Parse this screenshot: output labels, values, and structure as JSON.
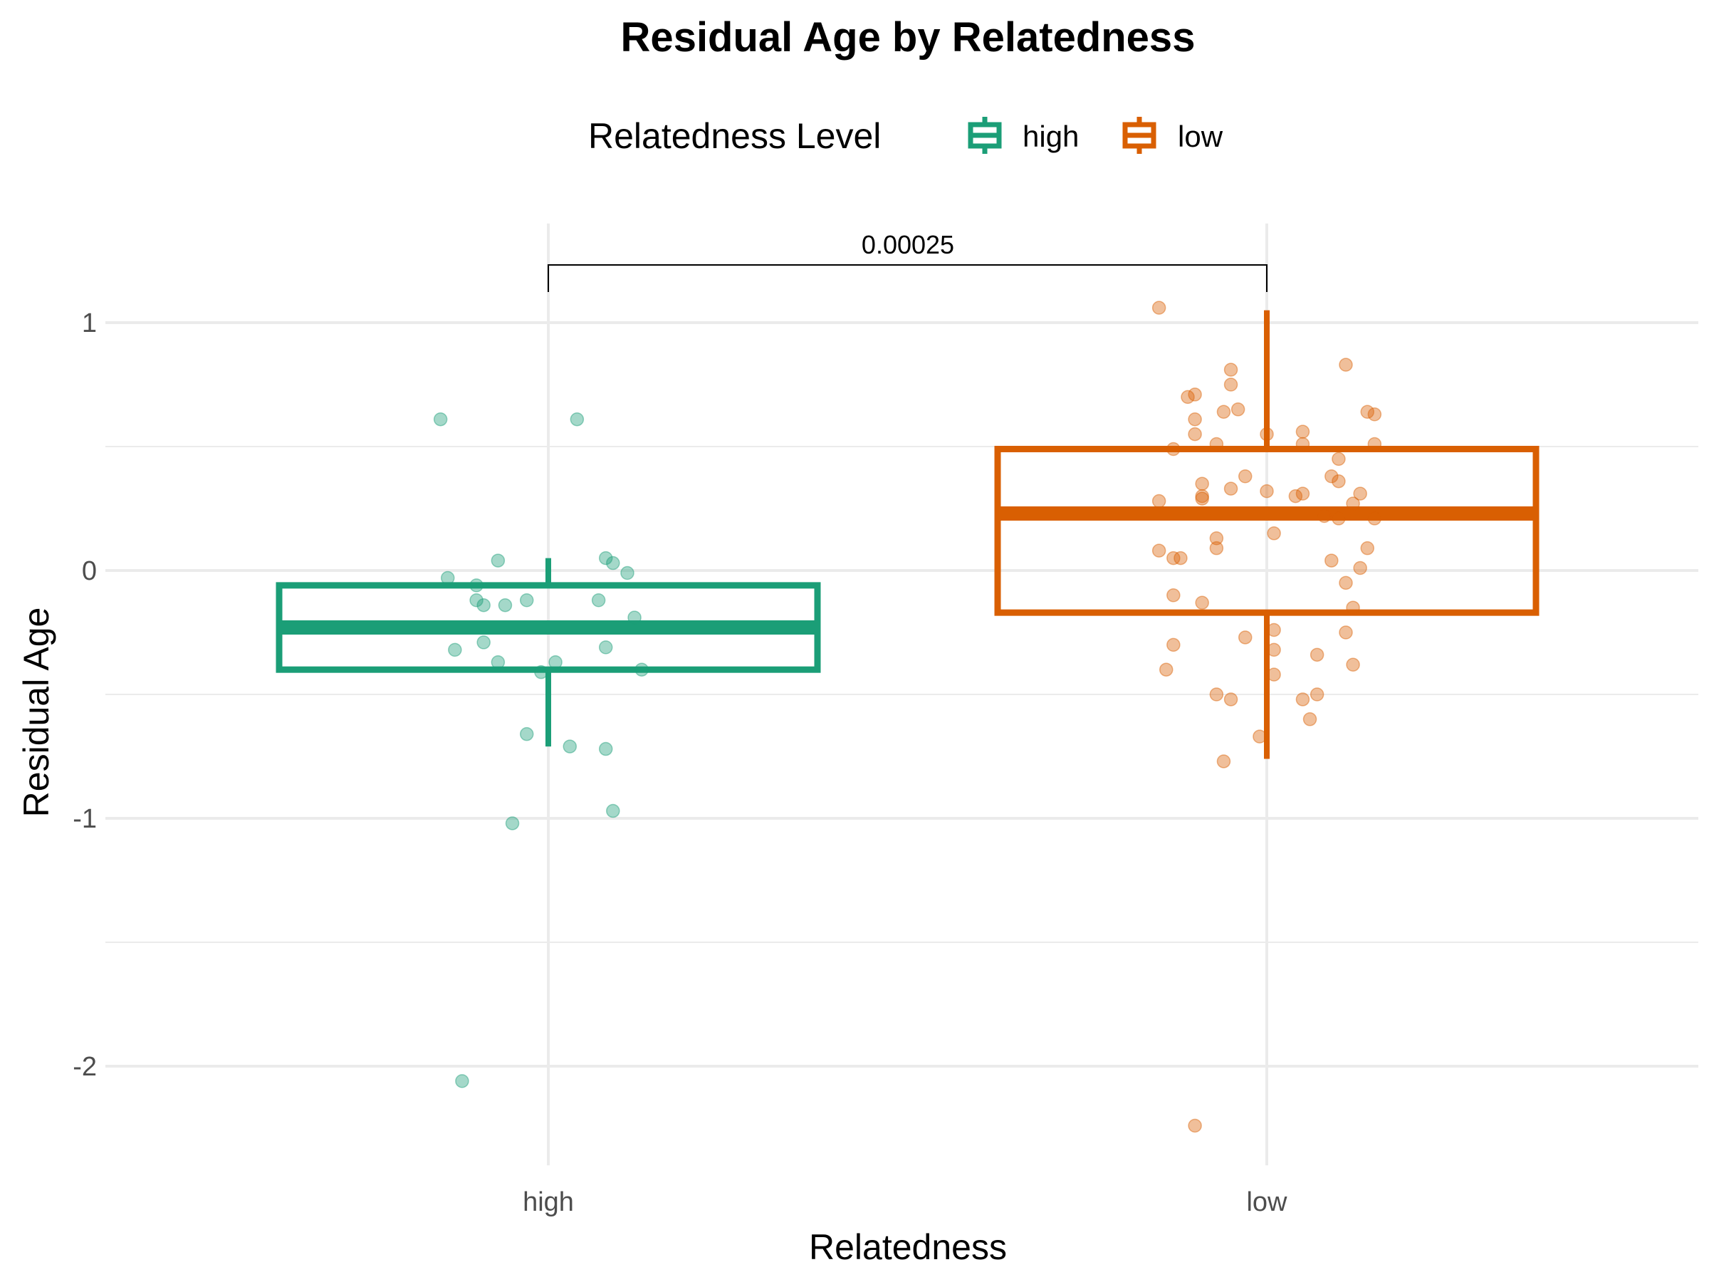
{
  "chart_data": {
    "type": "box",
    "title": "Residual Age by Relatedness",
    "xlabel": "Relatedness",
    "ylabel": "Residual Age",
    "categories": [
      "high",
      "low"
    ],
    "ylim": [
      -2.4,
      1.4
    ],
    "y_ticks": [
      -2,
      -1,
      0,
      1
    ],
    "y_tick_labels": [
      "-2",
      "-1",
      "0",
      "1"
    ],
    "legend": {
      "title": "Relatedness Level",
      "position": "top",
      "entries": [
        "high",
        "low"
      ]
    },
    "grid": true,
    "colors": {
      "high": "#1b9e77",
      "low": "#d95f02"
    },
    "series": [
      {
        "name": "high",
        "box": {
          "q1": -0.4,
          "median": -0.23,
          "q3": -0.06,
          "whisker_low": -0.71,
          "whisker_high": 0.05
        },
        "points": [
          [
            -0.15,
            0.61
          ],
          [
            0.04,
            0.61
          ],
          [
            -0.14,
            -0.03
          ],
          [
            -0.1,
            -0.06
          ],
          [
            -0.07,
            0.04
          ],
          [
            -0.1,
            -0.12
          ],
          [
            -0.09,
            -0.14
          ],
          [
            -0.06,
            -0.14
          ],
          [
            -0.03,
            -0.12
          ],
          [
            0.08,
            0.05
          ],
          [
            0.09,
            0.03
          ],
          [
            0.11,
            -0.01
          ],
          [
            0.07,
            -0.12
          ],
          [
            0.12,
            -0.19
          ],
          [
            -0.13,
            -0.32
          ],
          [
            -0.09,
            -0.29
          ],
          [
            -0.07,
            -0.37
          ],
          [
            -0.01,
            -0.41
          ],
          [
            0.01,
            -0.37
          ],
          [
            0.08,
            -0.31
          ],
          [
            0.13,
            -0.4
          ],
          [
            -0.03,
            -0.66
          ],
          [
            0.03,
            -0.71
          ],
          [
            0.08,
            -0.72
          ],
          [
            0.09,
            -0.97
          ],
          [
            -0.05,
            -1.02
          ],
          [
            -0.12,
            -2.06
          ]
        ]
      },
      {
        "name": "low",
        "box": {
          "q1": -0.17,
          "median": 0.23,
          "q3": 0.49,
          "whisker_low": -0.76,
          "whisker_high": 1.05
        },
        "points": [
          [
            -0.15,
            1.06
          ],
          [
            0.11,
            0.83
          ],
          [
            -0.05,
            0.81
          ],
          [
            -0.05,
            0.75
          ],
          [
            -0.1,
            0.71
          ],
          [
            -0.11,
            0.7
          ],
          [
            -0.04,
            0.65
          ],
          [
            -0.06,
            0.64
          ],
          [
            0.14,
            0.64
          ],
          [
            0.15,
            0.63
          ],
          [
            -0.1,
            0.61
          ],
          [
            0.05,
            0.56
          ],
          [
            -0.1,
            0.55
          ],
          [
            0.0,
            0.55
          ],
          [
            -0.07,
            0.51
          ],
          [
            0.05,
            0.51
          ],
          [
            0.15,
            0.51
          ],
          [
            -0.13,
            0.49
          ],
          [
            0.1,
            0.45
          ],
          [
            0.09,
            0.38
          ],
          [
            -0.03,
            0.38
          ],
          [
            0.1,
            0.36
          ],
          [
            -0.09,
            0.35
          ],
          [
            -0.05,
            0.33
          ],
          [
            0.0,
            0.32
          ],
          [
            0.13,
            0.31
          ],
          [
            -0.09,
            0.3
          ],
          [
            -0.09,
            0.29
          ],
          [
            0.04,
            0.3
          ],
          [
            0.05,
            0.31
          ],
          [
            -0.15,
            0.28
          ],
          [
            0.12,
            0.27
          ],
          [
            0.08,
            0.22
          ],
          [
            0.1,
            0.21
          ],
          [
            0.15,
            0.21
          ],
          [
            0.01,
            0.15
          ],
          [
            -0.07,
            0.13
          ],
          [
            -0.07,
            0.09
          ],
          [
            0.14,
            0.09
          ],
          [
            -0.15,
            0.08
          ],
          [
            -0.12,
            0.05
          ],
          [
            -0.13,
            0.05
          ],
          [
            0.09,
            0.04
          ],
          [
            0.13,
            0.01
          ],
          [
            0.11,
            -0.05
          ],
          [
            -0.13,
            -0.1
          ],
          [
            -0.09,
            -0.13
          ],
          [
            0.12,
            -0.15
          ],
          [
            0.01,
            -0.24
          ],
          [
            0.11,
            -0.25
          ],
          [
            -0.03,
            -0.27
          ],
          [
            -0.13,
            -0.3
          ],
          [
            0.01,
            -0.32
          ],
          [
            0.07,
            -0.34
          ],
          [
            -0.14,
            -0.4
          ],
          [
            0.12,
            -0.38
          ],
          [
            0.01,
            -0.42
          ],
          [
            -0.07,
            -0.5
          ],
          [
            0.07,
            -0.5
          ],
          [
            0.05,
            -0.52
          ],
          [
            -0.05,
            -0.52
          ],
          [
            0.06,
            -0.6
          ],
          [
            -0.01,
            -0.67
          ],
          [
            -0.06,
            -0.77
          ],
          [
            -0.1,
            -2.24
          ]
        ]
      }
    ],
    "comparison": {
      "from": "high",
      "to": "low",
      "label": "0.00025"
    }
  }
}
